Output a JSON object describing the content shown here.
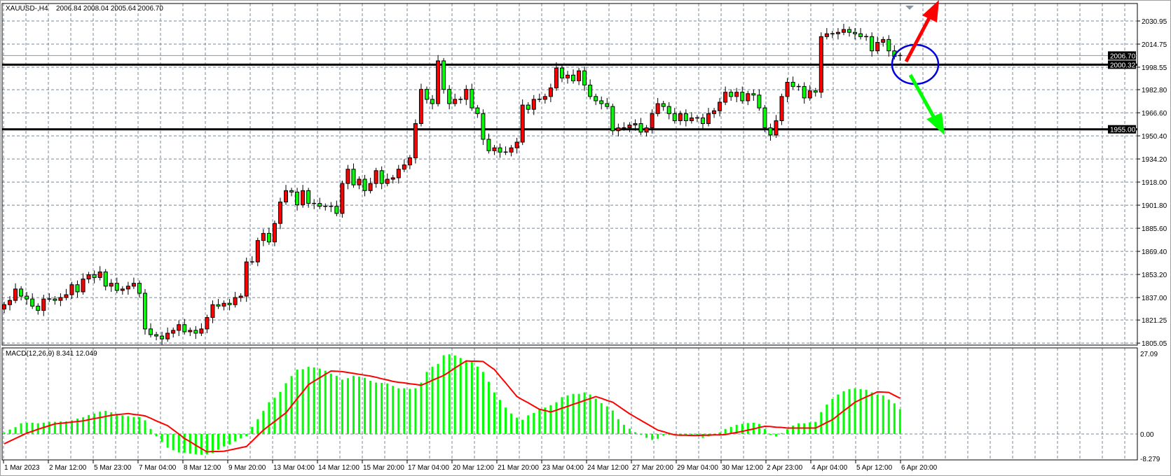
{
  "header": {
    "symbol": "XAUUSD-,H4",
    "ohlc": "2006.84 2008.04 2005.64 2006.70"
  },
  "colors": {
    "bull_candle": "#ff0000",
    "bear_candle": "#00ff00",
    "macd_histogram": "#00ff00",
    "signal_line": "#ff0000",
    "grid": "#778899",
    "level_line": "#000000",
    "up_arrow": "#ff0000",
    "down_arrow": "#00ff00",
    "annotation_circle": "#0000dd"
  },
  "chart_data": [
    {
      "type": "candlestick",
      "title": "XAUUSD-,H4",
      "price_axis_ticks": [
        "2030.95",
        "2014.75",
        "1998.55",
        "1982.80",
        "1966.60",
        "1950.40",
        "1934.20",
        "1918.00",
        "1901.80",
        "1885.60",
        "1869.40",
        "1853.20",
        "1837.00",
        "1821.25",
        "1805.05"
      ],
      "time_axis_ticks": [
        "1 Mar 2023",
        "2 Mar 12:00",
        "5 Mar 23:00",
        "7 Mar 04:00",
        "8 Mar 12:00",
        "9 Mar 20:00",
        "13 Mar 04:00",
        "14 Mar 12:00",
        "15 Mar 20:00",
        "17 Mar 04:00",
        "20 Mar 12:00",
        "21 Mar 20:00",
        "23 Mar 04:00",
        "24 Mar 12:00",
        "27 Mar 20:00",
        "29 Mar 04:00",
        "30 Mar 12:00",
        "2 Apr 23:00",
        "4 Apr 04:00",
        "5 Apr 12:00",
        "6 Apr 20:00"
      ],
      "ylim": [
        1805.05,
        2030.95
      ],
      "grid": true,
      "close": [
        1832,
        1835,
        1843,
        1838,
        1836,
        1831,
        1828,
        1836,
        1836,
        1835,
        1837,
        1839,
        1846,
        1841,
        1850,
        1853,
        1851,
        1855,
        1845,
        1847,
        1842,
        1843,
        1845,
        1847,
        1840,
        1815,
        1811,
        1810,
        1808,
        1812,
        1814,
        1818,
        1813,
        1814,
        1812,
        1815,
        1823,
        1832,
        1831,
        1833,
        1832,
        1837,
        1838,
        1862,
        1862,
        1877,
        1882,
        1876,
        1889,
        1904,
        1912,
        1911,
        1902,
        1912,
        1903,
        1903,
        1901,
        1901,
        1901,
        1896,
        1917,
        1927,
        1916,
        1920,
        1912,
        1917,
        1926,
        1917,
        1920,
        1921,
        1927,
        1930,
        1935,
        1959,
        1983,
        1976,
        1973,
        2003,
        1983,
        1973,
        1976,
        1976,
        1983,
        1970,
        1966,
        1948,
        1940,
        1942,
        1939,
        1939,
        1942,
        1946,
        1972,
        1969,
        1976,
        1976,
        1978,
        1984,
        1998,
        1991,
        1993,
        1989,
        1996,
        1986,
        1978,
        1975,
        1973,
        1971,
        1954,
        1956,
        1956,
        1958,
        1959,
        1953,
        1956,
        1966,
        1973,
        1971,
        1966,
        1961,
        1966,
        1961,
        1963,
        1963,
        1959,
        1966,
        1968,
        1974,
        1981,
        1978,
        1981,
        1975,
        1980,
        1979,
        1970,
        1956,
        1951,
        1961,
        1978,
        1988,
        1985,
        1985,
        1977,
        1982,
        1981,
        2020,
        2022,
        2022,
        2023,
        2025,
        2023,
        2022,
        2020,
        2020,
        2010,
        2016,
        2018,
        2010,
        2006,
        2006.7
      ],
      "horizontal_levels": [
        {
          "price": 2006.7,
          "label": "2006.70",
          "style": "current-price"
        },
        {
          "price": 2000.32,
          "label": "2000.32",
          "style": "thick"
        },
        {
          "price": 1955.0,
          "label": "1955.00",
          "style": "thick"
        }
      ]
    },
    {
      "type": "bar+line",
      "title": "MACD(12,26,9) 8.341 12.049",
      "axis_ticks": [
        "27.09",
        "0.00",
        "-8.279"
      ],
      "ylim": [
        -8.279,
        27.09
      ],
      "series": [
        {
          "name": "MACD",
          "type": "histogram",
          "values": [
            0.5,
            1.5,
            2.3,
            3.6,
            3.8,
            3.8,
            3.6,
            3.8,
            4.1,
            4.1,
            4.2,
            4.2,
            4.6,
            5.2,
            5.6,
            6.4,
            6.9,
            7.5,
            7.8,
            7.3,
            6.8,
            6.3,
            6.0,
            5.7,
            5.7,
            4.6,
            1.7,
            -0.7,
            -2.7,
            -4.6,
            -5.4,
            -6.2,
            -6.3,
            -6.6,
            -6.8,
            -7.0,
            -6.8,
            -6.4,
            -5.3,
            -4.2,
            -3.5,
            -2.5,
            -1.5,
            -0.7,
            2.4,
            5.0,
            7.8,
            10.7,
            12.2,
            14.2,
            17.1,
            19.5,
            21.7,
            21.8,
            22.6,
            22.4,
            22.0,
            21.3,
            20.3,
            19.6,
            18.3,
            18.8,
            19.6,
            19.3,
            18.9,
            17.9,
            17.3,
            17.2,
            17.0,
            16.2,
            15.4,
            15.4,
            15.2,
            15.4,
            17.3,
            20.9,
            22.6,
            23.6,
            26.5,
            26.8,
            26.4,
            25.6,
            24.6,
            24.6,
            22.7,
            20.9,
            17.6,
            14.0,
            11.5,
            8.9,
            6.9,
            5.5,
            4.8,
            6.3,
            7.1,
            8.3,
            8.9,
            9.7,
            10.7,
            12.4,
            13.0,
            13.5,
            13.5,
            14.0,
            13.3,
            11.9,
            10.4,
            9.3,
            7.9,
            5.0,
            3.1,
            1.8,
            0.6,
            -0.2,
            -1.3,
            -2.0,
            -1.6,
            -0.6,
            0.0,
            -0.2,
            0.0,
            -0.2,
            0.0,
            -0.2,
            -1.3,
            -0.8,
            -0.2,
            0.5,
            1.7,
            2.4,
            3.1,
            3.4,
            3.7,
            3.8,
            3.4,
            1.7,
            -0.3,
            -0.8,
            0.3,
            1.6,
            2.8,
            3.6,
            3.6,
            3.9,
            4.1,
            7.4,
            9.9,
            11.8,
            13.3,
            14.4,
            15.1,
            15.4,
            15.1,
            14.9,
            14.0,
            13.2,
            13.0,
            11.6,
            10.3,
            8.341
          ]
        },
        {
          "name": "Signal",
          "type": "line",
          "values": [
            -3.3,
            -2.4,
            -1.5,
            -0.6,
            0.3,
            0.9,
            1.6,
            2.2,
            2.8,
            3.4,
            3.6,
            3.8,
            4.0,
            4.2,
            4.4,
            4.8,
            5.2,
            5.5,
            5.9,
            6.3,
            6.5,
            6.7,
            6.9,
            6.6,
            6.4,
            6.1,
            5.3,
            4.4,
            3.6,
            2.8,
            1.4,
            0,
            -1.5,
            -2.6,
            -3.8,
            -4.9,
            -6.0,
            -5.9,
            -5.9,
            -5.8,
            -5.4,
            -5.0,
            -4.6,
            -4.2,
            -2.4,
            -0.5,
            1.3,
            2.8,
            4.2,
            5.7,
            7.1,
            9.5,
            11.9,
            14.2,
            16.6,
            17.8,
            18.9,
            20.1,
            21.2,
            21.1,
            21.0,
            20.7,
            20.4,
            20.1,
            19.8,
            19.5,
            19.1,
            18.6,
            18.2,
            17.7,
            17.4,
            17.2,
            16.9,
            16.7,
            16.4,
            17.2,
            18.1,
            18.9,
            19.7,
            20.9,
            22.2,
            23.4,
            24.6,
            24.5,
            24.5,
            24.4,
            23.0,
            21.7,
            19.4,
            17.2,
            14.9,
            12.6,
            11.5,
            10.5,
            9.4,
            8.3,
            7.9,
            7.4,
            8.0,
            8.7,
            9.3,
            10.0,
            10.6,
            11.3,
            11.9,
            12.6,
            12.0,
            11.3,
            10.7,
            9.4,
            8.1,
            6.8,
            5.7,
            4.6,
            3.5,
            2.4,
            1.3,
            0.8,
            0.2,
            -0.3,
            -0.4,
            -0.4,
            -0.5,
            -0.5,
            -0.4,
            -0.4,
            -0.3,
            -0.3,
            -0.2,
            0.2,
            0.5,
            0.9,
            1.3,
            1.7,
            2.2,
            2.6,
            2.5,
            2.3,
            2.2,
            2.0,
            2.0,
            2.0,
            2.0,
            2.0,
            2.0,
            2.9,
            3.9,
            4.8,
            6.3,
            7.8,
            9.2,
            10.7,
            11.6,
            12.5,
            13.3,
            14.2,
            14.1,
            14.0,
            13.0,
            12.049
          ]
        }
      ]
    }
  ]
}
